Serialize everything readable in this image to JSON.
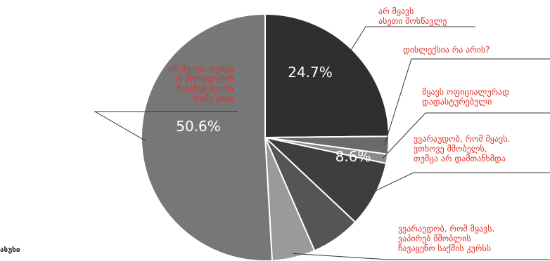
{
  "chart_data": {
    "type": "pie",
    "title": "",
    "slices": [
      {
        "label": [
          "არ მყავს",
          "ასეთი მოსწავლე"
        ],
        "value": 24.7,
        "value_label": "24.7%",
        "color": "#2f2f2f"
      },
      {
        "label": [
          "დისლექსია რა არის?"
        ],
        "value": 2.3,
        "value_label": "",
        "color": "#6a6a6a"
      },
      {
        "label": [
          "მყავს ოფიციალურად",
          "დადასტურებული"
        ],
        "value": 1.2,
        "value_label": "",
        "color": "#8a8a8a"
      },
      {
        "label": [
          "ვვარაუდობ, რომ მყავს.",
          "ვთხოვე მშობელს,",
          "თუმცა არ დამთანხმდა"
        ],
        "value": 8.6,
        "value_label": "8.6%",
        "color": "#3e3e3e"
      },
      {
        "label": [],
        "value": 6.4,
        "value_label": "",
        "color": "#555555"
      },
      {
        "label": [
          "ვვარაუდობ, რომ მყავს.",
          "ვაპირებ მშობლის",
          "ჩავაყენო საქმის კურსს"
        ],
        "value": 5.6,
        "value_label": "",
        "color": "#9a9a9a"
      },
      {
        "label": [
          "არ მყავს, თუმცა",
          "ამ პრობლემის",
          "შესახებ ბევრი",
          "რამე ვიცი"
        ],
        "value": 50.6,
        "value_label": "50.6%",
        "color": "#777777"
      }
    ],
    "legend": "none",
    "callout_color": "#e0302a",
    "footnote": "ასუხი"
  }
}
